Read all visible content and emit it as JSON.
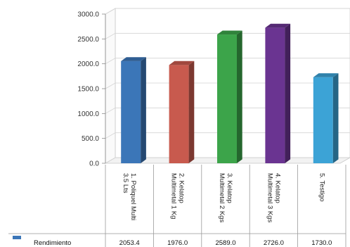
{
  "chart_data": {
    "type": "bar",
    "categories": [
      [
        "1. Poliquel Multi",
        "3.5 Lts"
      ],
      [
        "2. Kelatop",
        "Multimetal 1 Kg"
      ],
      [
        "3. Kelatop",
        "Multimetal 2 Kgs"
      ],
      [
        "4. Kelatop",
        "Multimetal 3 Kgs"
      ],
      [
        "5. Testigo"
      ]
    ],
    "series": [
      {
        "name": "Rendimiento",
        "values": [
          2053.4,
          1976.0,
          2589.0,
          2726.0,
          1730.0
        ],
        "value_labels": [
          "2053.4",
          "1976.0",
          "2589.0",
          "2726.0",
          "1730.0"
        ],
        "colors": [
          "#3b76b8",
          "#c85a4e",
          "#3ca44a",
          "#6a3491",
          "#3ca3d6"
        ],
        "legend_color": "#3b76b8"
      }
    ],
    "ylim": [
      0,
      3000
    ],
    "yticks": [
      "0.0",
      "500.0",
      "1000.0",
      "1500.0",
      "2000.0",
      "2500.0",
      "3000.0"
    ],
    "grid": true,
    "data_table": true
  }
}
